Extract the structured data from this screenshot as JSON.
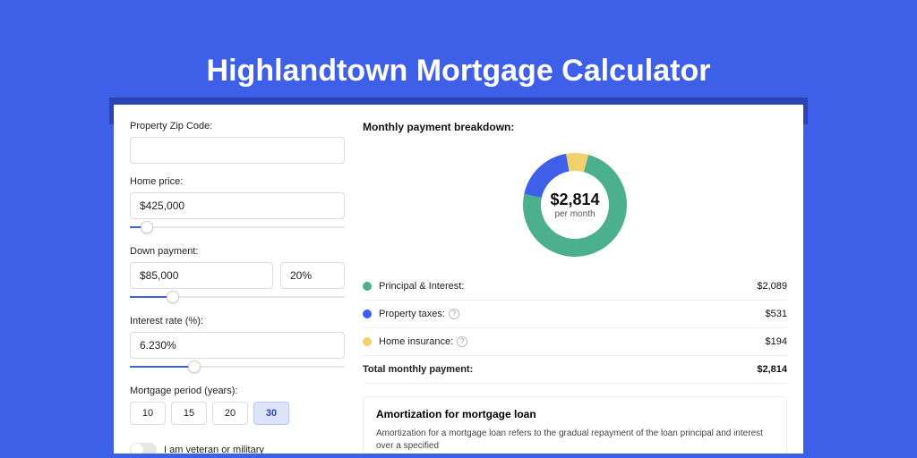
{
  "colors": {
    "page_bg": "#3e5fe8",
    "header_behind": "#2a43b8",
    "panel_bg": "#ffffff",
    "slider_fill": "#3e5fe8",
    "active_period_bg": "#dbe4fb"
  },
  "title": "Highlandtown Mortgage Calculator",
  "form": {
    "zip": {
      "label": "Property Zip Code:",
      "value": ""
    },
    "home_price": {
      "label": "Home price:",
      "value": "$425,000",
      "slider_pct": 8
    },
    "down_payment": {
      "label": "Down payment:",
      "value": "$85,000",
      "pct_value": "20%",
      "slider_pct": 20
    },
    "interest": {
      "label": "Interest rate (%):",
      "value": "6.230%",
      "slider_pct": 30
    },
    "period": {
      "label": "Mortgage period (years):",
      "options": [
        "10",
        "15",
        "20",
        "30"
      ],
      "active": "30"
    },
    "veteran": {
      "label": "I am veteran or military",
      "on": false
    }
  },
  "breakdown": {
    "title": "Monthly payment breakdown:",
    "donut": {
      "type": "donut",
      "center_amount": "$2,814",
      "center_sub": "per month",
      "slices": [
        {
          "name": "principal_interest",
          "color": "#4caf8e",
          "fraction": 0.742
        },
        {
          "name": "property_taxes",
          "color": "#3e5fe8",
          "fraction": 0.189
        },
        {
          "name": "home_insurance",
          "color": "#f2d06b",
          "fraction": 0.069
        }
      ],
      "outer_r": 58,
      "inner_r": 38,
      "start_angle_deg": -75
    },
    "legend": [
      {
        "dot": "#4caf8e",
        "label": "Principal & Interest:",
        "value": "$2,089",
        "help": false
      },
      {
        "dot": "#3e5fe8",
        "label": "Property taxes:",
        "value": "$531",
        "help": true
      },
      {
        "dot": "#f2d06b",
        "label": "Home insurance:",
        "value": "$194",
        "help": true
      }
    ],
    "total": {
      "label": "Total monthly payment:",
      "value": "$2,814"
    }
  },
  "amortization": {
    "title": "Amortization for mortgage loan",
    "body": "Amortization for a mortgage loan refers to the gradual repayment of the loan principal and interest over a specified"
  }
}
